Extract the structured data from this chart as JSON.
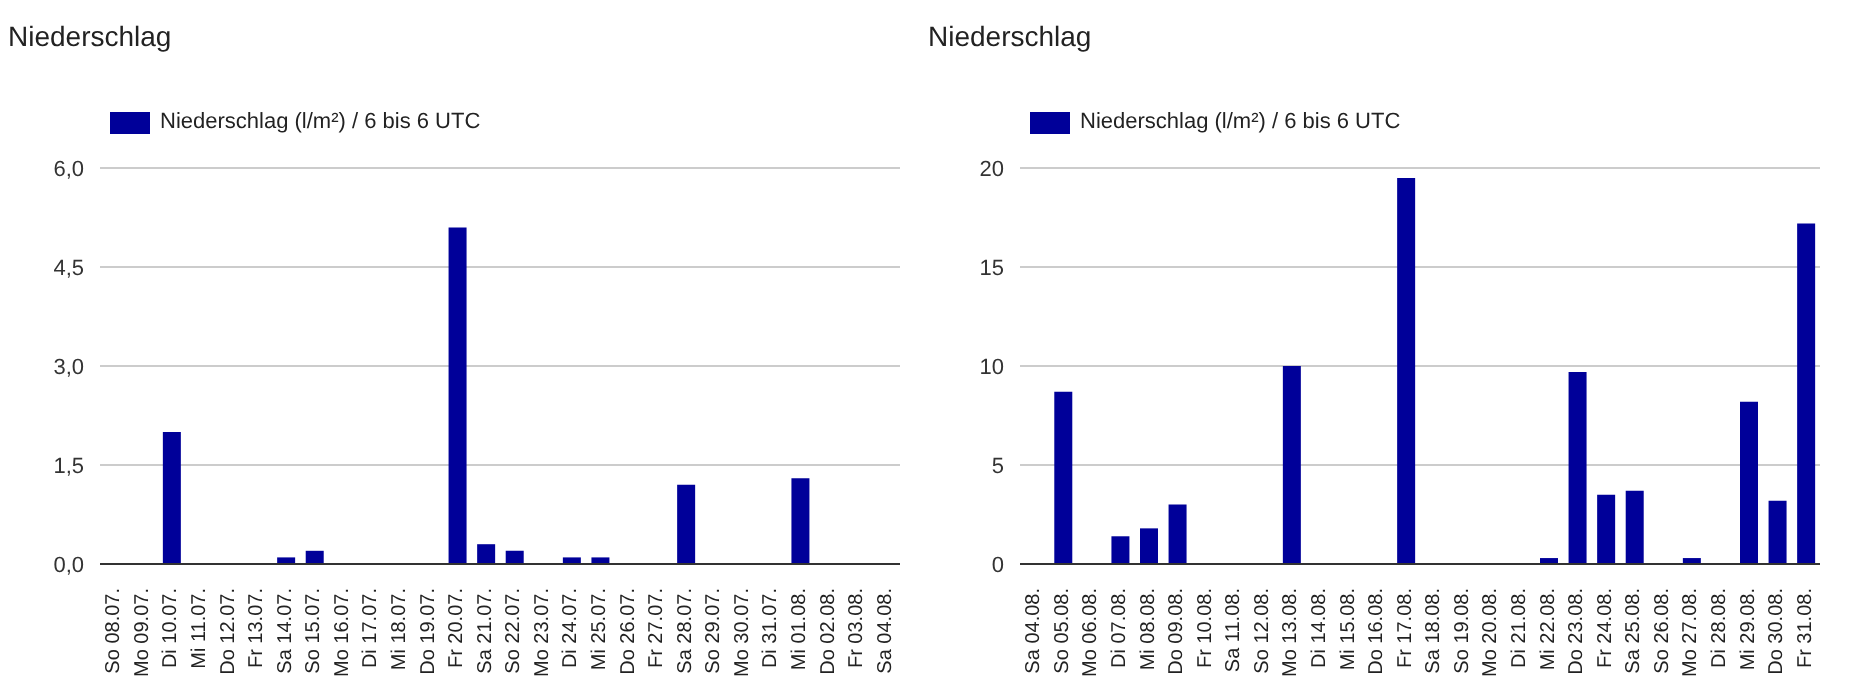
{
  "chart_data": [
    {
      "type": "bar",
      "title": "Niederschlag",
      "categories": [
        "So 08.07.",
        "Mo 09.07.",
        "Di 10.07.",
        "Mi 11.07.",
        "Do 12.07.",
        "Fr 13.07.",
        "Sa 14.07.",
        "So 15.07.",
        "Mo 16.07.",
        "Di 17.07.",
        "Mi 18.07.",
        "Do 19.07.",
        "Fr 20.07.",
        "Sa 21.07.",
        "So 22.07.",
        "Mo 23.07.",
        "Di 24.07.",
        "Mi 25.07.",
        "Do 26.07.",
        "Fr 27.07.",
        "Sa 28.07.",
        "So 29.07.",
        "Mo 30.07.",
        "Di 31.07.",
        "Mi 01.08.",
        "Do 02.08.",
        "Fr 03.08.",
        "Sa 04.08."
      ],
      "series": [
        {
          "name": "Niederschlag (l/m²) / 6 bis 6 UTC",
          "color": "#000099",
          "values": [
            0,
            0,
            2.0,
            0,
            0,
            0,
            0.1,
            0.2,
            0,
            0,
            0,
            0,
            5.1,
            0.3,
            0.2,
            0,
            0.1,
            0.1,
            0,
            0,
            1.2,
            0,
            0,
            0,
            1.3,
            0,
            0,
            0
          ]
        }
      ],
      "ylim": [
        0,
        6
      ],
      "yticks": [
        {
          "value": 0,
          "label": "0,0"
        },
        {
          "value": 1.5,
          "label": "1,5"
        },
        {
          "value": 3,
          "label": "3,0"
        },
        {
          "value": 4.5,
          "label": "4,5"
        },
        {
          "value": 6,
          "label": "6,0"
        }
      ],
      "grid": "y",
      "legend": "top left"
    },
    {
      "type": "bar",
      "title": "Niederschlag",
      "categories": [
        "Sa 04.08.",
        "So 05.08.",
        "Mo 06.08.",
        "Di 07.08.",
        "Mi 08.08.",
        "Do 09.08.",
        "Fr 10.08.",
        "Sa 11.08.",
        "So 12.08.",
        "Mo 13.08.",
        "Di 14.08.",
        "Mi 15.08.",
        "Do 16.08.",
        "Fr 17.08.",
        "Sa 18.08.",
        "So 19.08.",
        "Mo 20.08.",
        "Di 21.08.",
        "Mi 22.08.",
        "Do 23.08.",
        "Fr 24.08.",
        "Sa 25.08.",
        "So 26.08.",
        "Mo 27.08.",
        "Di 28.08.",
        "Mi 29.08.",
        "Do 30.08.",
        "Fr 31.08."
      ],
      "series": [
        {
          "name": "Niederschlag (l/m²) / 6 bis 6 UTC",
          "color": "#000099",
          "values": [
            0,
            8.7,
            0,
            1.4,
            1.8,
            3.0,
            0,
            0,
            0,
            10.0,
            0,
            0,
            0,
            19.5,
            0,
            0,
            0,
            0,
            0.3,
            9.7,
            3.5,
            3.7,
            0,
            0.3,
            0,
            8.2,
            3.2,
            17.2
          ]
        }
      ],
      "ylim": [
        0,
        20
      ],
      "yticks": [
        0,
        5,
        10,
        15,
        20
      ],
      "grid": "y",
      "legend": "top left"
    }
  ]
}
